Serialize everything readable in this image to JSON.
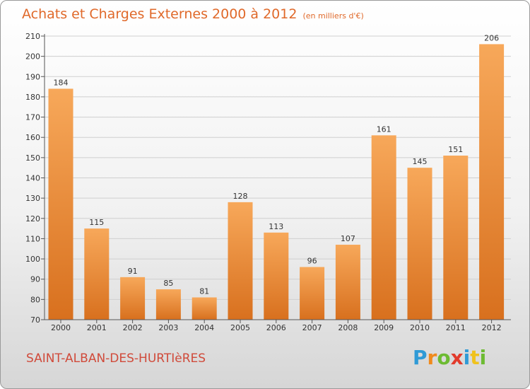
{
  "header": {
    "title": "Achats et Charges Externes 2000 à 2012",
    "unit": "(en milliers d'€)"
  },
  "footer": {
    "location": "SAINT-ALBAN-DES-HURTIèRES"
  },
  "logo": {
    "letters": [
      "P",
      "r",
      "o",
      "x",
      "i",
      "t",
      "i"
    ],
    "colors": [
      "#2f9ad6",
      "#f08a1c",
      "#6dbb32",
      "#e23b2c",
      "#2f9ad6",
      "#f0c21c",
      "#6dbb32"
    ]
  },
  "colors": {
    "bar_top": "#f7a85a",
    "bar_bottom": "#d8701e",
    "grid": "#cfcfcf",
    "axis": "#555555"
  },
  "chart_data": {
    "type": "bar",
    "title": "Achats et Charges Externes 2000 à 2012",
    "subtitle": "(en milliers d'€)",
    "categories": [
      "2000",
      "2001",
      "2002",
      "2003",
      "2004",
      "2005",
      "2006",
      "2007",
      "2008",
      "2009",
      "2010",
      "2011",
      "2012"
    ],
    "values": [
      184,
      115,
      91,
      85,
      81,
      128,
      113,
      96,
      107,
      161,
      145,
      151,
      206
    ],
    "ylim": [
      70,
      210
    ],
    "yticks": [
      70,
      80,
      90,
      100,
      110,
      120,
      130,
      140,
      150,
      160,
      170,
      180,
      190,
      200,
      210
    ],
    "grid": true,
    "legend": "none",
    "xlabel": "",
    "ylabel": ""
  }
}
